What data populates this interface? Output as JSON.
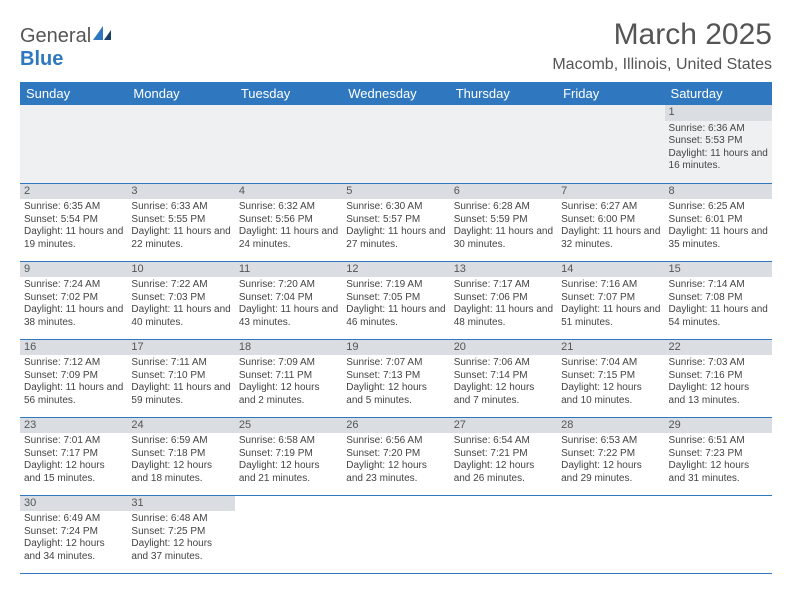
{
  "logo": {
    "text1": "General",
    "text2": "Blue"
  },
  "title": "March 2025",
  "location": "Macomb, Illinois, United States",
  "weekdays": [
    "Sunday",
    "Monday",
    "Tuesday",
    "Wednesday",
    "Thursday",
    "Friday",
    "Saturday"
  ],
  "style": {
    "header_bg": "#2f78bf",
    "header_fg": "#ffffff",
    "daynum_bg": "#dadee2",
    "row_border": "#2f78bf",
    "font_small": 10,
    "font_header": 13,
    "font_title": 30,
    "font_location": 16
  },
  "weeks": [
    [
      null,
      null,
      null,
      null,
      null,
      null,
      {
        "n": "1",
        "sunrise": "Sunrise: 6:36 AM",
        "sunset": "Sunset: 5:53 PM",
        "daylight": "Daylight: 11 hours and 16 minutes."
      }
    ],
    [
      {
        "n": "2",
        "sunrise": "Sunrise: 6:35 AM",
        "sunset": "Sunset: 5:54 PM",
        "daylight": "Daylight: 11 hours and 19 minutes."
      },
      {
        "n": "3",
        "sunrise": "Sunrise: 6:33 AM",
        "sunset": "Sunset: 5:55 PM",
        "daylight": "Daylight: 11 hours and 22 minutes."
      },
      {
        "n": "4",
        "sunrise": "Sunrise: 6:32 AM",
        "sunset": "Sunset: 5:56 PM",
        "daylight": "Daylight: 11 hours and 24 minutes."
      },
      {
        "n": "5",
        "sunrise": "Sunrise: 6:30 AM",
        "sunset": "Sunset: 5:57 PM",
        "daylight": "Daylight: 11 hours and 27 minutes."
      },
      {
        "n": "6",
        "sunrise": "Sunrise: 6:28 AM",
        "sunset": "Sunset: 5:59 PM",
        "daylight": "Daylight: 11 hours and 30 minutes."
      },
      {
        "n": "7",
        "sunrise": "Sunrise: 6:27 AM",
        "sunset": "Sunset: 6:00 PM",
        "daylight": "Daylight: 11 hours and 32 minutes."
      },
      {
        "n": "8",
        "sunrise": "Sunrise: 6:25 AM",
        "sunset": "Sunset: 6:01 PM",
        "daylight": "Daylight: 11 hours and 35 minutes."
      }
    ],
    [
      {
        "n": "9",
        "sunrise": "Sunrise: 7:24 AM",
        "sunset": "Sunset: 7:02 PM",
        "daylight": "Daylight: 11 hours and 38 minutes."
      },
      {
        "n": "10",
        "sunrise": "Sunrise: 7:22 AM",
        "sunset": "Sunset: 7:03 PM",
        "daylight": "Daylight: 11 hours and 40 minutes."
      },
      {
        "n": "11",
        "sunrise": "Sunrise: 7:20 AM",
        "sunset": "Sunset: 7:04 PM",
        "daylight": "Daylight: 11 hours and 43 minutes."
      },
      {
        "n": "12",
        "sunrise": "Sunrise: 7:19 AM",
        "sunset": "Sunset: 7:05 PM",
        "daylight": "Daylight: 11 hours and 46 minutes."
      },
      {
        "n": "13",
        "sunrise": "Sunrise: 7:17 AM",
        "sunset": "Sunset: 7:06 PM",
        "daylight": "Daylight: 11 hours and 48 minutes."
      },
      {
        "n": "14",
        "sunrise": "Sunrise: 7:16 AM",
        "sunset": "Sunset: 7:07 PM",
        "daylight": "Daylight: 11 hours and 51 minutes."
      },
      {
        "n": "15",
        "sunrise": "Sunrise: 7:14 AM",
        "sunset": "Sunset: 7:08 PM",
        "daylight": "Daylight: 11 hours and 54 minutes."
      }
    ],
    [
      {
        "n": "16",
        "sunrise": "Sunrise: 7:12 AM",
        "sunset": "Sunset: 7:09 PM",
        "daylight": "Daylight: 11 hours and 56 minutes."
      },
      {
        "n": "17",
        "sunrise": "Sunrise: 7:11 AM",
        "sunset": "Sunset: 7:10 PM",
        "daylight": "Daylight: 11 hours and 59 minutes."
      },
      {
        "n": "18",
        "sunrise": "Sunrise: 7:09 AM",
        "sunset": "Sunset: 7:11 PM",
        "daylight": "Daylight: 12 hours and 2 minutes."
      },
      {
        "n": "19",
        "sunrise": "Sunrise: 7:07 AM",
        "sunset": "Sunset: 7:13 PM",
        "daylight": "Daylight: 12 hours and 5 minutes."
      },
      {
        "n": "20",
        "sunrise": "Sunrise: 7:06 AM",
        "sunset": "Sunset: 7:14 PM",
        "daylight": "Daylight: 12 hours and 7 minutes."
      },
      {
        "n": "21",
        "sunrise": "Sunrise: 7:04 AM",
        "sunset": "Sunset: 7:15 PM",
        "daylight": "Daylight: 12 hours and 10 minutes."
      },
      {
        "n": "22",
        "sunrise": "Sunrise: 7:03 AM",
        "sunset": "Sunset: 7:16 PM",
        "daylight": "Daylight: 12 hours and 13 minutes."
      }
    ],
    [
      {
        "n": "23",
        "sunrise": "Sunrise: 7:01 AM",
        "sunset": "Sunset: 7:17 PM",
        "daylight": "Daylight: 12 hours and 15 minutes."
      },
      {
        "n": "24",
        "sunrise": "Sunrise: 6:59 AM",
        "sunset": "Sunset: 7:18 PM",
        "daylight": "Daylight: 12 hours and 18 minutes."
      },
      {
        "n": "25",
        "sunrise": "Sunrise: 6:58 AM",
        "sunset": "Sunset: 7:19 PM",
        "daylight": "Daylight: 12 hours and 21 minutes."
      },
      {
        "n": "26",
        "sunrise": "Sunrise: 6:56 AM",
        "sunset": "Sunset: 7:20 PM",
        "daylight": "Daylight: 12 hours and 23 minutes."
      },
      {
        "n": "27",
        "sunrise": "Sunrise: 6:54 AM",
        "sunset": "Sunset: 7:21 PM",
        "daylight": "Daylight: 12 hours and 26 minutes."
      },
      {
        "n": "28",
        "sunrise": "Sunrise: 6:53 AM",
        "sunset": "Sunset: 7:22 PM",
        "daylight": "Daylight: 12 hours and 29 minutes."
      },
      {
        "n": "29",
        "sunrise": "Sunrise: 6:51 AM",
        "sunset": "Sunset: 7:23 PM",
        "daylight": "Daylight: 12 hours and 31 minutes."
      }
    ],
    [
      {
        "n": "30",
        "sunrise": "Sunrise: 6:49 AM",
        "sunset": "Sunset: 7:24 PM",
        "daylight": "Daylight: 12 hours and 34 minutes."
      },
      {
        "n": "31",
        "sunrise": "Sunrise: 6:48 AM",
        "sunset": "Sunset: 7:25 PM",
        "daylight": "Daylight: 12 hours and 37 minutes."
      },
      null,
      null,
      null,
      null,
      null
    ]
  ]
}
